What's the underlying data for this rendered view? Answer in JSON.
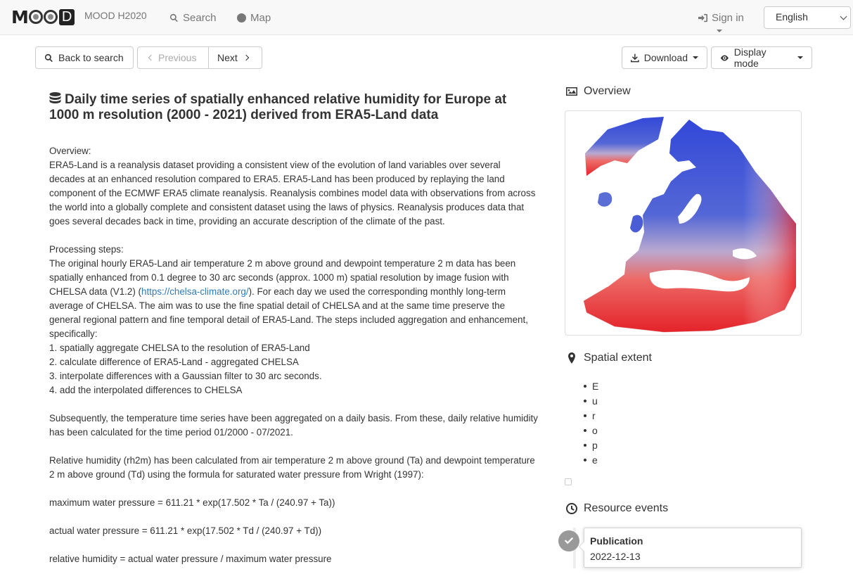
{
  "navbar": {
    "site_name": "MOOD H2020",
    "logo_text": "MOOD",
    "search_label": "Search",
    "map_label": "Map",
    "signin_label": "Sign in",
    "language": "English"
  },
  "toolbar": {
    "back_label": "Back to search",
    "previous_label": "Previous",
    "next_label": "Next",
    "download_label": "Download",
    "display_mode_label": "Display mode"
  },
  "record": {
    "title": "Daily time series of spatially enhanced relative humidity for Europe at 1000 m resolution (2000 - 2021) derived from ERA5-Land data",
    "overview_heading": "Overview:",
    "overview_text": "ERA5-Land is a reanalysis dataset providing a consistent view of the evolution of land variables over several decades at an enhanced resolution compared to ERA5. ERA5-Land has been produced by replaying the land component of the ECMWF ERA5 climate reanalysis. Reanalysis combines model data with observations from across the world into a globally complete and consistent dataset using the laws of physics. Reanalysis produces data that goes several decades back in time, providing an accurate description of the climate of the past.",
    "processing_heading": "Processing steps:",
    "processing_text_before_link": "The original hourly ERA5-Land air temperature 2 m above ground and dewpoint temperature 2 m data has been spatially enhanced from 0.1 degree to 30 arc seconds (approx. 1000 m) spatial resolution by image fusion with CHELSA data (V1.2) (",
    "processing_link": "https://chelsa-climate.org/",
    "processing_text_after_link": "). For each day we used the corresponding monthly long-term average of CHELSA. The aim was to use the fine spatial detail of CHELSA and at the same time preserve the general regional pattern and fine temporal detail of ERA5-Land. The steps included aggregation and enhancement, specifically:",
    "steps": [
      "1. spatially aggregate CHELSA to the resolution of ERA5-Land",
      "2. calculate difference of ERA5-Land - aggregated CHELSA",
      "3. interpolate differences with a Gaussian filter to 30 arc seconds.",
      "4. add the interpolated differences to CHELSA"
    ],
    "subsequently_text": "Subsequently, the temperature time series have been aggregated on a daily basis. From these, daily relative humidity has been calculated for the time period 01/2000 - 07/2021.",
    "rh_text": "Relative humidity (rh2m) has been calculated from air temperature 2 m above ground (Ta) and dewpoint temperature 2 m above ground (Td) using the formula for saturated water pressure from Wright (1997):",
    "formula_max": "maximum water pressure = 611.21 * exp(17.502 * Ta / (240.97 + Ta))",
    "formula_actual": "actual water pressure = 611.21 * exp(17.502 * Td / (240.97 + Td))",
    "formula_rh": "relative humidity = actual water pressure / maximum water pressure"
  },
  "sidebar": {
    "overview_heading": "Overview",
    "spatial_heading": "Spatial extent",
    "extent_letters": [
      "E",
      "u",
      "r",
      "o",
      "p",
      "e"
    ],
    "events_heading": "Resource events",
    "event_title": "Publication",
    "event_date": "2022-12-13"
  },
  "colors": {
    "map_cold": "#3a4fd0",
    "map_mid": "#c9b8d8",
    "map_hot": "#e4232a"
  }
}
